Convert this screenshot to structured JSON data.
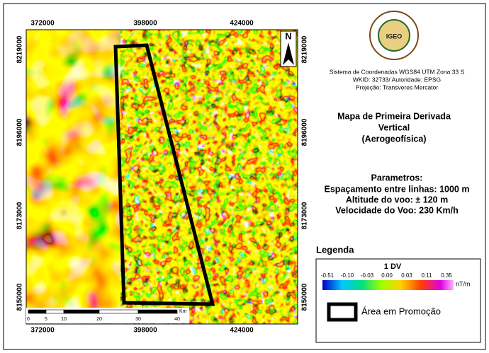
{
  "map": {
    "x_ticks": [
      "372000",
      "398000",
      "424000"
    ],
    "y_ticks": [
      "8219000",
      "8196000",
      "8173000",
      "8150000"
    ],
    "north": "N",
    "scale_bar": {
      "labels": [
        "0",
        "5",
        "10",
        "20",
        "30",
        "40"
      ],
      "unit": "Km"
    }
  },
  "logo": {
    "ring": "INSTITUTO GEOLÓGICO DE ANGOLA",
    "abbr": "IGEO"
  },
  "crs": [
    "Sistema de Coordenadas WGS84 UTM Zona 33 S",
    "WKID: 32733/ Autoridade: EPSG",
    "Projeção: Transveres Mercator"
  ],
  "title": [
    "Mapa de Primeira Derivada",
    "Vertical",
    "(Aerogeofísica)"
  ],
  "parameters": {
    "heading": "Parametros:",
    "lines": [
      "Espaçamento entre linhas: 1000 m",
      "Altitude do voo: ± 120 m",
      "Velocidade do Voo: 230 Km/h"
    ]
  },
  "legend": {
    "title": "Legenda",
    "colorbar": {
      "title": "1 DV",
      "ticks": [
        "-0.51",
        "-0.10",
        "-0.03",
        "0.00",
        "0.03",
        "0.11",
        "0.35"
      ],
      "unit": "nT/m"
    },
    "area": "Área em Promoção"
  }
}
